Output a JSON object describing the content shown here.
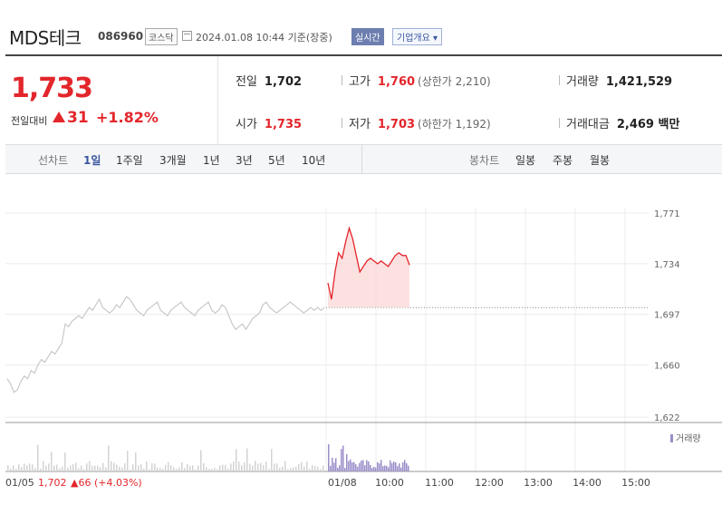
{
  "header": {
    "name": "MDS테크",
    "code": "086960",
    "market": "코스닥",
    "timestamp": "2024.01.08 10:44 기준(장중)",
    "live_label": "실시간",
    "company_button": "기업개요 ▾"
  },
  "quote": {
    "price": "1,733",
    "change_label": "전일대비",
    "change_amount": "31",
    "change_percent": "+1.82%",
    "prev_close_label": "전일",
    "prev_close": "1,702",
    "open_label": "시가",
    "open": "1,735",
    "high_label": "고가",
    "high": "1,760",
    "upper_limit": "(상한가 2,210)",
    "low_label": "저가",
    "low": "1,703",
    "lower_limit": "(하한가 1,192)",
    "volume_label": "거래량",
    "volume": "1,421,529",
    "value_label": "거래대금",
    "value": "2,469 백만"
  },
  "tabs": {
    "line_chart": "선차트",
    "periods": [
      "1일",
      "1주일",
      "3개월",
      "1년",
      "3년",
      "5년",
      "10년"
    ],
    "active": "1일",
    "candle_chart": "봉차트",
    "candle_periods": [
      "일봉",
      "주봉",
      "월봉"
    ]
  },
  "colors": {
    "up": "#e3262b",
    "accent": "#3a56a0",
    "volume": "#9b8ec9"
  },
  "chart_data": {
    "type": "line",
    "yticks": [
      "1,771",
      "1,734",
      "1,697",
      "1,660",
      "1,622"
    ],
    "ylim": [
      1622,
      1771
    ],
    "xticks": [
      "01/05",
      "01/08",
      "10:00",
      "11:00",
      "12:00",
      "13:00",
      "14:00",
      "15:00"
    ],
    "prev_close": 1702,
    "prev_day_label": "01/05",
    "prev_day_close": "1,702",
    "prev_day_change": "▲66 (+4.03%)",
    "legend": "거래량",
    "prev_day_series": [
      1650,
      1646,
      1640,
      1642,
      1648,
      1652,
      1650,
      1656,
      1654,
      1660,
      1664,
      1662,
      1666,
      1670,
      1668,
      1672,
      1676,
      1690,
      1688,
      1692,
      1694,
      1696,
      1694,
      1698,
      1702,
      1700,
      1704,
      1708,
      1702,
      1700,
      1698,
      1700,
      1704,
      1702,
      1706,
      1710,
      1708,
      1704,
      1700,
      1698,
      1696,
      1700,
      1702,
      1704,
      1706,
      1700,
      1698,
      1696,
      1700,
      1702,
      1704,
      1706,
      1702,
      1700,
      1698,
      1696,
      1700,
      1702,
      1704,
      1706,
      1700,
      1698,
      1700,
      1704,
      1702,
      1696,
      1690,
      1686,
      1688,
      1690,
      1686,
      1690,
      1694,
      1696,
      1698,
      1704,
      1706,
      1702,
      1700,
      1698,
      1700,
      1702,
      1704,
      1706,
      1704,
      1702,
      1700,
      1698,
      1700,
      1702,
      1700,
      1702,
      1700,
      1702
    ],
    "today_series": [
      1720,
      1708,
      1728,
      1742,
      1738,
      1750,
      1760,
      1752,
      1740,
      1728,
      1732,
      1736,
      1738,
      1736,
      1734,
      1736,
      1734,
      1732,
      1736,
      1740,
      1742,
      1740,
      1740,
      1733
    ]
  }
}
